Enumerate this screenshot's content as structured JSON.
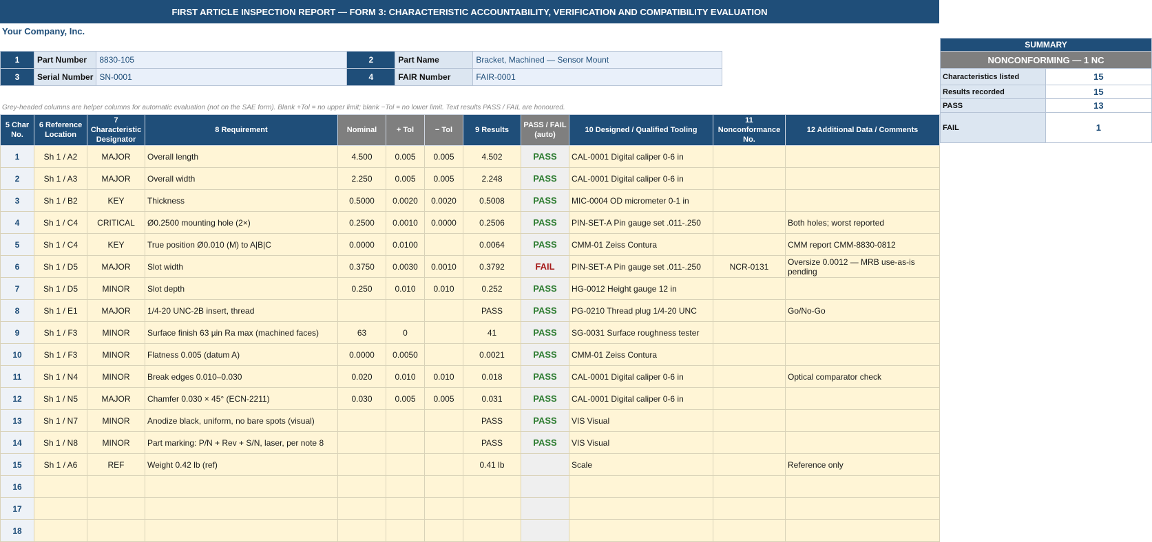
{
  "title": "FIRST ARTICLE INSPECTION REPORT — FORM 3: CHARACTERISTIC ACCOUNTABILITY, VERIFICATION AND COMPATIBILITY EVALUATION",
  "company": "Your Company, Inc.",
  "header": {
    "part_number": {
      "num": "1",
      "label": "Part Number",
      "value": "8830-105"
    },
    "part_name": {
      "num": "2",
      "label": "Part Name",
      "value": "Bracket, Machined — Sensor Mount"
    },
    "serial_number": {
      "num": "3",
      "label": "Serial Number",
      "value": "SN-0001"
    },
    "fair_number": {
      "num": "4",
      "label": "FAIR Number",
      "value": "FAIR-0001"
    }
  },
  "helper_note": "Grey-headed columns are helper columns for automatic evaluation (not on the SAE form). Blank +Tol = no upper limit; blank −Tol = no lower limit. Text results PASS / FAIL are honoured.",
  "summary": {
    "title": "SUMMARY",
    "status": "NONCONFORMING — 1 NC",
    "rows": [
      {
        "label": "Characteristics listed",
        "value": "15"
      },
      {
        "label": "Results recorded",
        "value": "15"
      },
      {
        "label": "PASS",
        "value": "13"
      },
      {
        "label": "FAIL",
        "value": "1"
      }
    ]
  },
  "columns": {
    "char_no": [
      "5  Char",
      "No."
    ],
    "ref_loc": [
      "6  Reference",
      "Location"
    ],
    "designator": [
      "7  Characteristic",
      "Designator"
    ],
    "requirement": "8  Requirement",
    "nominal": "Nominal",
    "plus_tol": "+ Tol",
    "minus_tol": "− Tol",
    "results": "9  Results",
    "passfail": [
      "PASS / FAIL",
      "(auto)"
    ],
    "tooling": "10  Designed / Qualified Tooling",
    "ncr": [
      "11",
      "Nonconformance",
      "No."
    ],
    "comments": "12  Additional Data / Comments"
  },
  "rows": [
    {
      "n": "1",
      "loc": "Sh 1 / A2",
      "des": "MAJOR",
      "req": "Overall length",
      "nom": "4.500",
      "pt": "0.005",
      "mt": "0.005",
      "res": "4.502",
      "pf": "PASS",
      "tool": "CAL-0001 Digital caliper 0-6 in",
      "ncr": "",
      "com": ""
    },
    {
      "n": "2",
      "loc": "Sh 1 / A3",
      "des": "MAJOR",
      "req": "Overall width",
      "nom": "2.250",
      "pt": "0.005",
      "mt": "0.005",
      "res": "2.248",
      "pf": "PASS",
      "tool": "CAL-0001 Digital caliper 0-6 in",
      "ncr": "",
      "com": ""
    },
    {
      "n": "3",
      "loc": "Sh 1 / B2",
      "des": "KEY",
      "req": "Thickness",
      "nom": "0.5000",
      "pt": "0.0020",
      "mt": "0.0020",
      "res": "0.5008",
      "pf": "PASS",
      "tool": "MIC-0004 OD micrometer 0-1 in",
      "ncr": "",
      "com": ""
    },
    {
      "n": "4",
      "loc": "Sh 1 / C4",
      "des": "CRITICAL",
      "req": "Ø0.2500 mounting hole (2×)",
      "nom": "0.2500",
      "pt": "0.0010",
      "mt": "0.0000",
      "res": "0.2506",
      "pf": "PASS",
      "tool": "PIN-SET-A Pin gauge set .011-.250",
      "ncr": "",
      "com": "Both holes; worst reported"
    },
    {
      "n": "5",
      "loc": "Sh 1 / C4",
      "des": "KEY",
      "req": "True position Ø0.010 (M) to A|B|C",
      "nom": "0.0000",
      "pt": "0.0100",
      "mt": "",
      "res": "0.0064",
      "pf": "PASS",
      "tool": "CMM-01 Zeiss Contura",
      "ncr": "",
      "com": "CMM report CMM-8830-0812"
    },
    {
      "n": "6",
      "loc": "Sh 1 / D5",
      "des": "MAJOR",
      "req": "Slot width",
      "nom": "0.3750",
      "pt": "0.0030",
      "mt": "0.0010",
      "res": "0.3792",
      "pf": "FAIL",
      "tool": "PIN-SET-A Pin gauge set .011-.250",
      "ncr": "NCR-0131",
      "com": "Oversize 0.0012 — MRB use-as-is pending"
    },
    {
      "n": "7",
      "loc": "Sh 1 / D5",
      "des": "MINOR",
      "req": "Slot depth",
      "nom": "0.250",
      "pt": "0.010",
      "mt": "0.010",
      "res": "0.252",
      "pf": "PASS",
      "tool": "HG-0012 Height gauge 12 in",
      "ncr": "",
      "com": ""
    },
    {
      "n": "8",
      "loc": "Sh 1 / E1",
      "des": "MAJOR",
      "req": "1/4-20 UNC-2B insert, thread",
      "nom": "",
      "pt": "",
      "mt": "",
      "res": "PASS",
      "pf": "PASS",
      "tool": "PG-0210 Thread plug 1/4-20 UNC",
      "ncr": "",
      "com": "Go/No-Go"
    },
    {
      "n": "9",
      "loc": "Sh 1 / F3",
      "des": "MINOR",
      "req": "Surface finish 63 µin Ra max (machined faces)",
      "nom": "63",
      "pt": "0",
      "mt": "",
      "res": "41",
      "pf": "PASS",
      "tool": "SG-0031 Surface roughness tester",
      "ncr": "",
      "com": ""
    },
    {
      "n": "10",
      "loc": "Sh 1 / F3",
      "des": "MINOR",
      "req": "Flatness 0.005 (datum A)",
      "nom": "0.0000",
      "pt": "0.0050",
      "mt": "",
      "res": "0.0021",
      "pf": "PASS",
      "tool": "CMM-01 Zeiss Contura",
      "ncr": "",
      "com": ""
    },
    {
      "n": "11",
      "loc": "Sh 1 / N4",
      "des": "MINOR",
      "req": "Break edges 0.010–0.030",
      "nom": "0.020",
      "pt": "0.010",
      "mt": "0.010",
      "res": "0.018",
      "pf": "PASS",
      "tool": "CAL-0001 Digital caliper 0-6 in",
      "ncr": "",
      "com": "Optical comparator check"
    },
    {
      "n": "12",
      "loc": "Sh 1 / N5",
      "des": "MAJOR",
      "req": "Chamfer 0.030 × 45° (ECN-2211)",
      "nom": "0.030",
      "pt": "0.005",
      "mt": "0.005",
      "res": "0.031",
      "pf": "PASS",
      "tool": "CAL-0001 Digital caliper 0-6 in",
      "ncr": "",
      "com": ""
    },
    {
      "n": "13",
      "loc": "Sh 1 / N7",
      "des": "MINOR",
      "req": "Anodize black, uniform, no bare spots (visual)",
      "nom": "",
      "pt": "",
      "mt": "",
      "res": "PASS",
      "pf": "PASS",
      "tool": "VIS Visual",
      "ncr": "",
      "com": ""
    },
    {
      "n": "14",
      "loc": "Sh 1 / N8",
      "des": "MINOR",
      "req": "Part marking: P/N + Rev + S/N, laser, per note 8",
      "nom": "",
      "pt": "",
      "mt": "",
      "res": "PASS",
      "pf": "PASS",
      "tool": "VIS Visual",
      "ncr": "",
      "com": ""
    },
    {
      "n": "15",
      "loc": "Sh 1 / A6",
      "des": "REF",
      "req": "Weight 0.42 lb (ref)",
      "nom": "",
      "pt": "",
      "mt": "",
      "res": "0.41 lb",
      "pf": "",
      "tool": "Scale",
      "ncr": "",
      "com": "Reference only"
    },
    {
      "n": "16",
      "loc": "",
      "des": "",
      "req": "",
      "nom": "",
      "pt": "",
      "mt": "",
      "res": "",
      "pf": "",
      "tool": "",
      "ncr": "",
      "com": ""
    },
    {
      "n": "17",
      "loc": "",
      "des": "",
      "req": "",
      "nom": "",
      "pt": "",
      "mt": "",
      "res": "",
      "pf": "",
      "tool": "",
      "ncr": "",
      "com": ""
    },
    {
      "n": "18",
      "loc": "",
      "des": "",
      "req": "",
      "nom": "",
      "pt": "",
      "mt": "",
      "res": "",
      "pf": "",
      "tool": "",
      "ncr": "",
      "com": ""
    }
  ]
}
